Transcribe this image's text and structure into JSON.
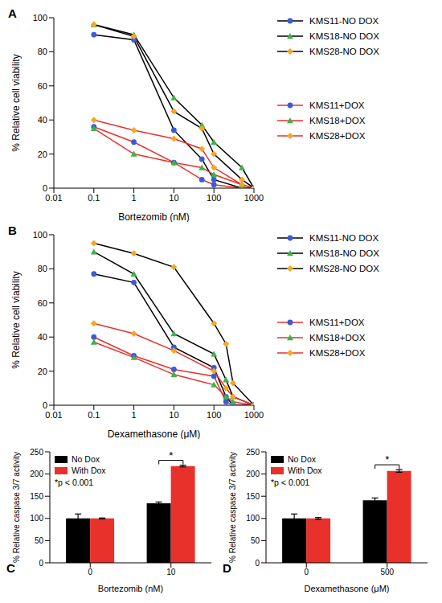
{
  "chart_data": [
    {
      "type": "line",
      "title": "A",
      "x_label": "Bortezomib (nM)",
      "y_label": "% Relative cell viability",
      "log": "x",
      "legend": "right",
      "x": [
        0.1,
        1,
        10,
        50,
        100,
        500,
        1000
      ],
      "xlim": [
        0.01,
        1000
      ],
      "xticks": [
        0.01,
        0.1,
        1,
        10,
        100,
        1000
      ],
      "ylim": [
        0,
        100
      ],
      "yticks": [
        0,
        20,
        40,
        60,
        80,
        100
      ],
      "series": [
        {
          "name": "KMS11-NO DOX",
          "color": "#000000",
          "marker": "circle",
          "colors": [
            "#3b5bd6",
            "#3b5bd6",
            "#3b5bd6",
            "#3b5bd6",
            "#3b5bd6",
            "#3b5bd6",
            "#3b5bd6"
          ],
          "values": [
            90,
            87,
            34,
            17,
            5,
            0,
            0
          ]
        },
        {
          "name": "KMS18-NO DOX",
          "color": "#000000",
          "marker": "triangle",
          "colors": [
            "#3cb44b",
            "#3cb44b",
            "#3cb44b",
            "#3cb44b",
            "#3cb44b",
            "#3cb44b",
            "#3cb44b"
          ],
          "values": [
            96,
            90,
            53,
            37,
            27,
            12,
            0
          ]
        },
        {
          "name": "KMS28-NO DOX",
          "color": "#000000",
          "marker": "diamond",
          "colors": [
            "#f5a623",
            "#f5a623",
            "#f5a623",
            "#f5a623",
            "#f5a623",
            "#f5a623",
            "#f5a623"
          ],
          "values": [
            96,
            89,
            45,
            35,
            20,
            5,
            0
          ]
        },
        {
          "name": "KMS11+DOX",
          "color": "#e8312a",
          "marker": "circle",
          "colors": [
            "#3b5bd6",
            "#3b5bd6",
            "#3b5bd6",
            "#3b5bd6",
            "#3b5bd6",
            "#3b5bd6",
            "#3b5bd6"
          ],
          "values": [
            36,
            27,
            15,
            5,
            2,
            0,
            0
          ]
        },
        {
          "name": "KMS18+DOX",
          "color": "#e8312a",
          "marker": "triangle",
          "colors": [
            "#3cb44b",
            "#3cb44b",
            "#3cb44b",
            "#3cb44b",
            "#3cb44b",
            "#3cb44b",
            "#3cb44b"
          ],
          "values": [
            35,
            20,
            15,
            12,
            8,
            2,
            0
          ]
        },
        {
          "name": "KMS28+DOX",
          "color": "#e8312a",
          "marker": "diamond",
          "colors": [
            "#f5a623",
            "#f5a623",
            "#f5a623",
            "#f5a623",
            "#f5a623",
            "#f5a623",
            "#f5a623"
          ],
          "values": [
            40,
            34,
            29,
            23,
            12,
            2,
            0
          ]
        }
      ]
    },
    {
      "type": "line",
      "title": "B",
      "x_label": "Dexamethasone (μM)",
      "y_label": "% Relative cell viability",
      "log": "x",
      "legend": "right",
      "x": [
        0.1,
        1,
        10,
        100,
        200,
        300,
        1000
      ],
      "xlim": [
        0.01,
        1000
      ],
      "xticks": [
        0.01,
        0.1,
        1,
        10,
        100,
        1000
      ],
      "ylim": [
        0,
        100
      ],
      "yticks": [
        0,
        20,
        40,
        60,
        80,
        100
      ],
      "series": [
        {
          "name": "KMS11-NO DOX",
          "color": "#000000",
          "marker": "circle",
          "colors": [
            "#3b5bd6",
            "#3b5bd6",
            "#3b5bd6",
            "#3b5bd6",
            "#3b5bd6",
            "#3b5bd6",
            "#3b5bd6"
          ],
          "values": [
            77,
            72,
            34,
            22,
            5,
            0,
            0
          ]
        },
        {
          "name": "KMS18-NO DOX",
          "color": "#000000",
          "marker": "triangle",
          "colors": [
            "#3cb44b",
            "#3cb44b",
            "#3cb44b",
            "#3cb44b",
            "#3cb44b",
            "#3cb44b",
            "#3cb44b"
          ],
          "values": [
            90,
            77,
            42,
            30,
            15,
            5,
            0
          ]
        },
        {
          "name": "KMS28-NO DOX",
          "color": "#000000",
          "marker": "diamond",
          "colors": [
            "#f5a623",
            "#f5a623",
            "#f5a623",
            "#f5a623",
            "#f5a623",
            "#f5a623",
            "#f5a623"
          ],
          "values": [
            95,
            89,
            81,
            48,
            36,
            13,
            0
          ]
        },
        {
          "name": "KMS11+DOX",
          "color": "#e8312a",
          "marker": "circle",
          "colors": [
            "#3b5bd6",
            "#3b5bd6",
            "#3b5bd6",
            "#3b5bd6",
            "#3b5bd6",
            "#3b5bd6",
            "#3b5bd6"
          ],
          "values": [
            40,
            29,
            21,
            17,
            2,
            0,
            0
          ]
        },
        {
          "name": "KMS18+DOX",
          "color": "#e8312a",
          "marker": "triangle",
          "colors": [
            "#3cb44b",
            "#3cb44b",
            "#3cb44b",
            "#3cb44b",
            "#3cb44b",
            "#3cb44b",
            "#3cb44b"
          ],
          "values": [
            37,
            28,
            18,
            12,
            5,
            2,
            0
          ]
        },
        {
          "name": "KMS28+DOX",
          "color": "#e8312a",
          "marker": "diamond",
          "colors": [
            "#f5a623",
            "#f5a623",
            "#f5a623",
            "#f5a623",
            "#f5a623",
            "#f5a623",
            "#f5a623"
          ],
          "values": [
            48,
            42,
            32,
            20,
            10,
            5,
            0
          ]
        }
      ]
    },
    {
      "type": "bar",
      "title": "C",
      "x_label": "Bortezomib (nM)",
      "y_label": "% Relative caspase 3/7 activity",
      "legend": "upper left",
      "categories": [
        "0",
        "10"
      ],
      "ylim": [
        0,
        250
      ],
      "yticks": [
        0,
        50,
        100,
        150,
        200,
        250
      ],
      "annotations": [
        {
          "text": "*p < 0.001"
        },
        {
          "text": "*",
          "category": "10"
        }
      ],
      "series": [
        {
          "name": "No Dox",
          "color": "#000000",
          "values": [
            100,
            134
          ],
          "errors": [
            10,
            3
          ]
        },
        {
          "name": "With Dox",
          "color": "#e8312a",
          "values": [
            100,
            218
          ],
          "errors": [
            1,
            2
          ]
        }
      ]
    },
    {
      "type": "bar",
      "title": "D",
      "x_label": "Dexamethasone (μM)",
      "y_label": "% Relative caspase 3/7 activity",
      "legend": "upper left",
      "categories": [
        "0",
        "500"
      ],
      "ylim": [
        0,
        250
      ],
      "yticks": [
        0,
        50,
        100,
        150,
        200,
        250
      ],
      "annotations": [
        {
          "text": "*p < 0.001"
        },
        {
          "text": "*",
          "category": "500"
        }
      ],
      "series": [
        {
          "name": "No Dox",
          "color": "#000000",
          "values": [
            100,
            141
          ],
          "errors": [
            10,
            5
          ]
        },
        {
          "name": "With Dox",
          "color": "#e8312a",
          "values": [
            100,
            207
          ],
          "errors": [
            2,
            3
          ]
        }
      ]
    }
  ]
}
